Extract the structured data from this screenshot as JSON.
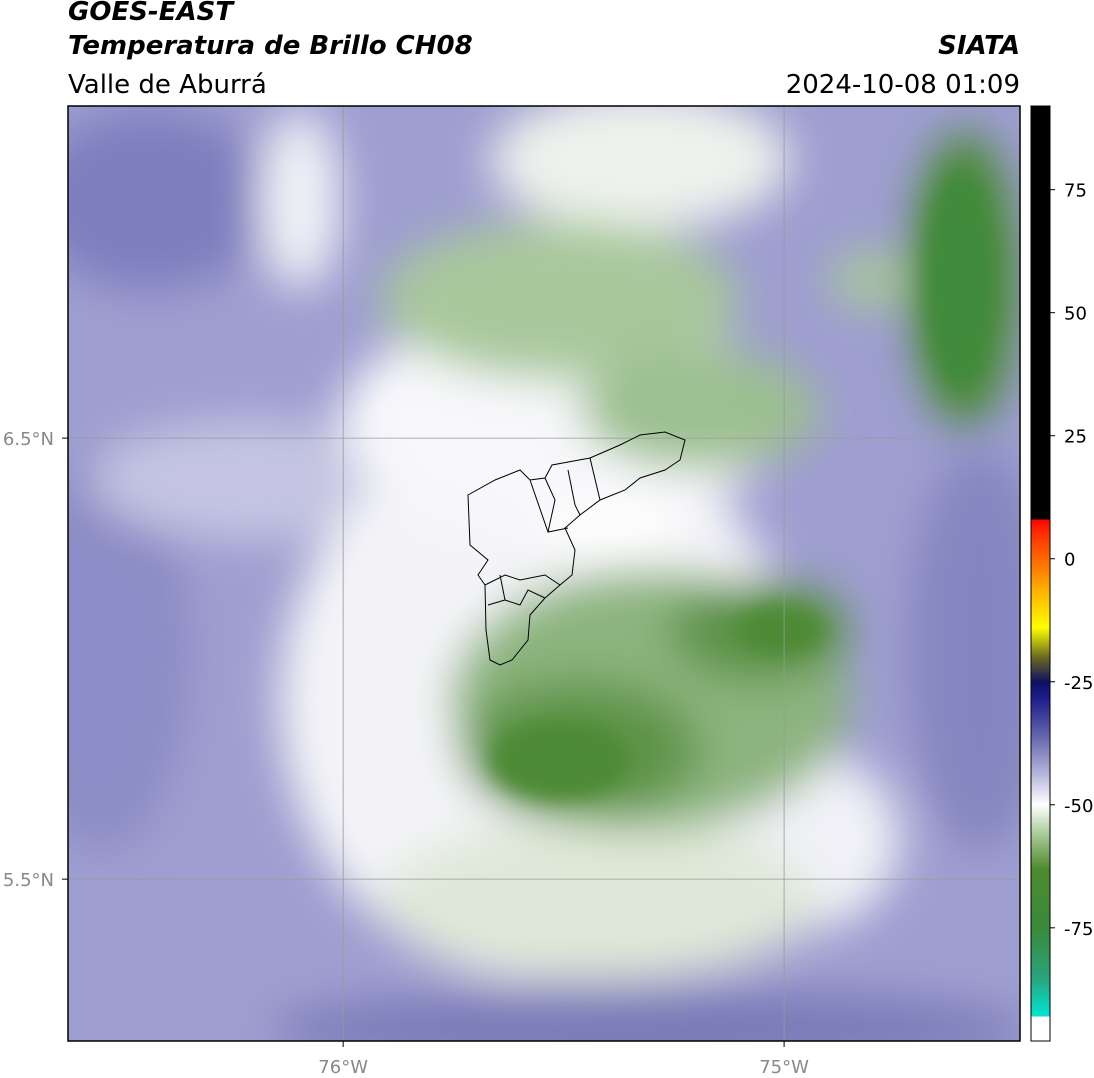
{
  "chart_data": {
    "type": "map",
    "title": "GOES-EAST",
    "subtitle": "Temperatura de Brillo CH08",
    "source": "SIATA",
    "region": "Valle de Aburrá",
    "datetime": "2024-10-08 01:09",
    "xlim": [
      -76.624,
      -74.465
    ],
    "ylim": [
      5.133,
      7.253
    ],
    "xticks": [
      {
        "value": -76,
        "label": "76°W"
      },
      {
        "value": -75,
        "label": "75°W"
      }
    ],
    "yticks": [
      {
        "value": 6.5,
        "label": "6.5°N"
      },
      {
        "value": 5.5,
        "label": "5.5°N"
      }
    ],
    "grid": true,
    "colorbar": {
      "lim": [
        -98,
        92
      ],
      "ticks": [
        75,
        50,
        25,
        0,
        -25,
        -50,
        -75
      ],
      "stops": [
        {
          "value": -98,
          "color": "#ffffff"
        },
        {
          "value": -93,
          "color": "#ffffff"
        },
        {
          "value": -93,
          "color": "#00e5d5"
        },
        {
          "value": -85,
          "color": "#2aa37a"
        },
        {
          "value": -75,
          "color": "#3a8a3a"
        },
        {
          "value": -63,
          "color": "#4e8a2e"
        },
        {
          "value": -55,
          "color": "#b5d3a8"
        },
        {
          "value": -50,
          "color": "#ffffff"
        },
        {
          "value": -44,
          "color": "#b8b8dc"
        },
        {
          "value": -35,
          "color": "#5a5aa8"
        },
        {
          "value": -28,
          "color": "#1a1a8a"
        },
        {
          "value": -25,
          "color": "#101060"
        },
        {
          "value": -20,
          "color": "#6a6a20"
        },
        {
          "value": -14,
          "color": "#ffff00"
        },
        {
          "value": -5,
          "color": "#ffa000"
        },
        {
          "value": 5,
          "color": "#ff3000"
        },
        {
          "value": 8,
          "color": "#ff0000"
        },
        {
          "value": 8,
          "color": "#000000"
        },
        {
          "value": 92,
          "color": "#000000"
        }
      ]
    }
  }
}
